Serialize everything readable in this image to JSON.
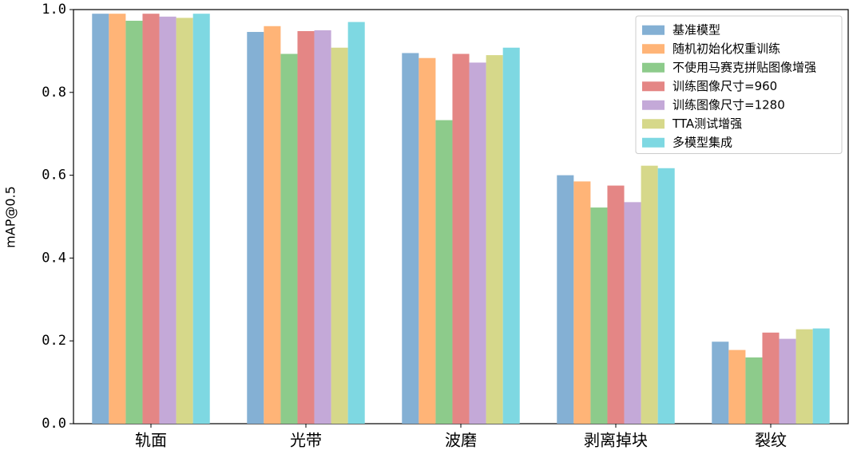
{
  "chart_data": {
    "type": "bar",
    "y_label": "mAP@0.5",
    "categories": [
      "轨面",
      "光带",
      "波磨",
      "剥离掉块",
      "裂纹"
    ],
    "series": [
      {
        "name": "基准模型",
        "color": "#84b0d4",
        "values": [
          0.99,
          0.946,
          0.895,
          0.6,
          0.198
        ]
      },
      {
        "name": "随机初始化权重训练",
        "color": "#ffb477",
        "values": [
          0.99,
          0.96,
          0.883,
          0.585,
          0.178
        ]
      },
      {
        "name": "不使用马赛克拼贴图像增强",
        "color": "#8dcb8b",
        "values": [
          0.973,
          0.893,
          0.733,
          0.522,
          0.16
        ]
      },
      {
        "name": "训练图像尺寸=960",
        "color": "#e48685",
        "values": [
          0.99,
          0.948,
          0.893,
          0.575,
          0.22
        ]
      },
      {
        "name": "训练图像尺寸=1280",
        "color": "#c4a9d8",
        "values": [
          0.983,
          0.95,
          0.872,
          0.535,
          0.205
        ]
      },
      {
        "name": "TTA测试增强",
        "color": "#d6d88a",
        "values": [
          0.98,
          0.908,
          0.89,
          0.623,
          0.228
        ]
      },
      {
        "name": "多模型集成",
        "color": "#7ed8e2",
        "values": [
          0.99,
          0.97,
          0.908,
          0.617,
          0.23
        ]
      }
    ],
    "ylim": [
      0,
      1
    ],
    "yticks": [
      {
        "value": 0,
        "label": "0.0"
      },
      0.2,
      0.4,
      0.6,
      0.8,
      {
        "value": 1,
        "label": "1.0"
      }
    ],
    "legend": "upper right"
  }
}
